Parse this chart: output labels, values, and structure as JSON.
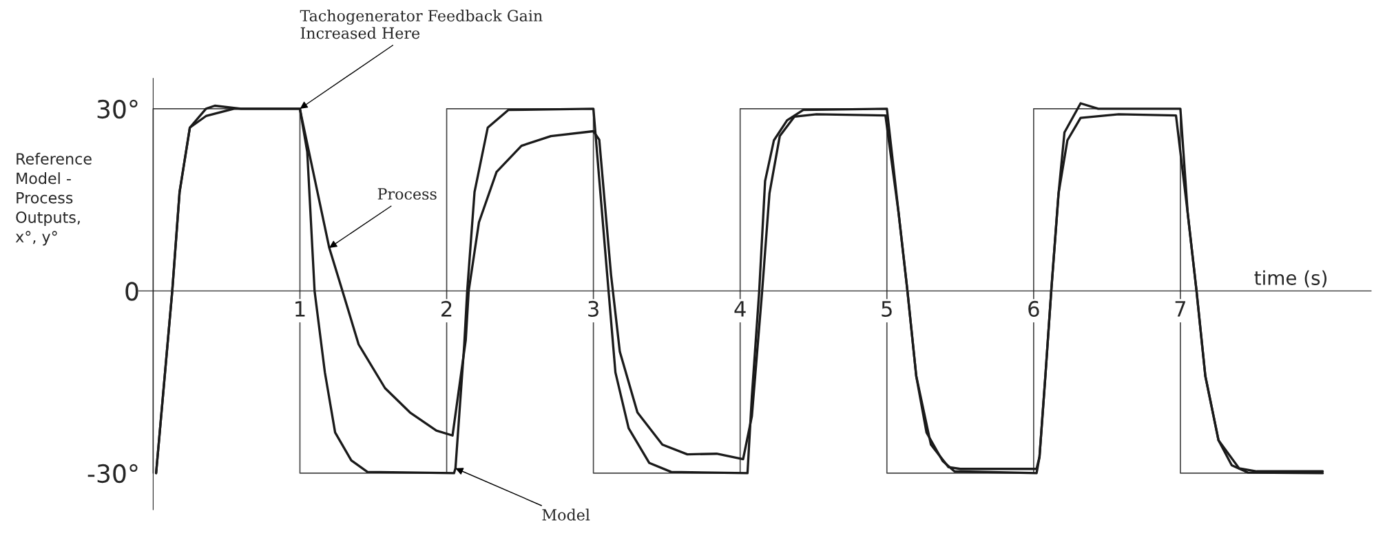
{
  "chart_data": {
    "type": "line",
    "xlabel": "time (s)",
    "ylabel": "Reference\nModel -\nProcess\nOutputs,\nx°, y°",
    "xlim": [
      -0.1,
      8.3
    ],
    "ylim": [
      -36,
      35
    ],
    "xticks": [
      1,
      2,
      3,
      4,
      5,
      6,
      7
    ],
    "yticks": [
      {
        "value": -30,
        "label": "-30°"
      },
      0,
      {
        "value": 30,
        "label": "30°"
      }
    ],
    "grid": false,
    "legend": false,
    "marker": "none",
    "line_style": "solid",
    "series": [
      {
        "color": "#444444",
        "x": [
          0,
          0,
          1,
          1,
          2,
          2,
          3,
          3,
          4,
          4,
          5,
          5,
          6,
          6,
          7,
          7,
          7.97
        ],
        "values": [
          -30,
          30,
          30,
          -30,
          -30,
          30,
          30,
          -30,
          -30,
          30,
          30,
          -30,
          -30,
          30,
          30,
          -30,
          -30
        ]
      },
      {
        "color": "#1a1a1a",
        "x": [
          0.02,
          0.13,
          0.18,
          0.25,
          0.36,
          0.42,
          0.6,
          1.0,
          1.05,
          1.1,
          1.17,
          1.24,
          1.35,
          1.46,
          2.05,
          2.06,
          2.12,
          2.14,
          2.19,
          2.28,
          2.42,
          3.0,
          3.09,
          3.15,
          3.24,
          3.38,
          3.53,
          4.05,
          4.08,
          4.13,
          4.17,
          4.23,
          4.32,
          4.43,
          5.0,
          5.08,
          5.14,
          5.2,
          5.27,
          5.38,
          5.46,
          6.02,
          6.04,
          6.08,
          6.12,
          6.17,
          6.21,
          6.32,
          6.44,
          7.0,
          7.05,
          7.11,
          7.17,
          7.26,
          7.35,
          7.46,
          7.97
        ],
        "values": [
          -30,
          0,
          16.3,
          26.9,
          30,
          30.5,
          30,
          30,
          22.9,
          0,
          -13.4,
          -23.3,
          -27.9,
          -29.8,
          -30,
          -29.2,
          -8.8,
          0,
          16.3,
          26.9,
          29.8,
          30,
          3.8,
          -13.4,
          -22.6,
          -28.3,
          -29.8,
          -30,
          -17.3,
          0,
          18.1,
          24.8,
          28.1,
          29.8,
          30,
          12.8,
          0,
          -14,
          -23.3,
          -28,
          -29.7,
          -30,
          -27.3,
          -14,
          0,
          16.1,
          26.1,
          30.9,
          30,
          30,
          12.8,
          0,
          -14,
          -24.6,
          -28.7,
          -29.9,
          -30
        ]
      },
      {
        "color": "#1a1a1a",
        "x": [
          0.02,
          0.13,
          0.18,
          0.25,
          0.36,
          0.55,
          1.0,
          1.01,
          1.2,
          1.29,
          1.4,
          1.58,
          1.75,
          1.93,
          2.04,
          2.13,
          2.15,
          2.22,
          2.34,
          2.51,
          2.71,
          3.0,
          3.04,
          3.12,
          3.18,
          3.3,
          3.47,
          3.64,
          3.84,
          4.02,
          4.08,
          4.15,
          4.2,
          4.27,
          4.37,
          4.52,
          4.99,
          5.08,
          5.14,
          5.2,
          5.3,
          5.42,
          5.5,
          6.02,
          6.04,
          6.08,
          6.12,
          6.17,
          6.23,
          6.32,
          6.58,
          6.97,
          7.05,
          7.11,
          7.17,
          7.26,
          7.4,
          7.52,
          7.97
        ],
        "values": [
          -30,
          0,
          16.3,
          26.9,
          28.8,
          30,
          30,
          28.8,
          7.1,
          0,
          -8.8,
          -16,
          -20,
          -23,
          -23.8,
          -8.1,
          0,
          11.3,
          19.6,
          23.9,
          25.5,
          26.3,
          24.9,
          2.7,
          -10,
          -20,
          -25.3,
          -26.9,
          -26.8,
          -27.7,
          -20.6,
          0,
          16.1,
          25.5,
          28.7,
          29.1,
          28.9,
          12.8,
          0,
          -14,
          -25.3,
          -29,
          -29.3,
          -29.3,
          -27.3,
          -14,
          0,
          16.1,
          24.8,
          28.5,
          29.1,
          28.9,
          12.8,
          0,
          -14,
          -24.6,
          -29.2,
          -29.7,
          -29.7
        ]
      }
    ],
    "annotations": [
      {
        "text": "Tachogenerator Feedback Gain\nIncreased Here",
        "x": 1,
        "y": 30
      },
      {
        "text": "Process",
        "x": 1.2,
        "y": 7.1
      },
      {
        "text": "Model",
        "x": 2.06,
        "y": -29.2
      }
    ]
  }
}
